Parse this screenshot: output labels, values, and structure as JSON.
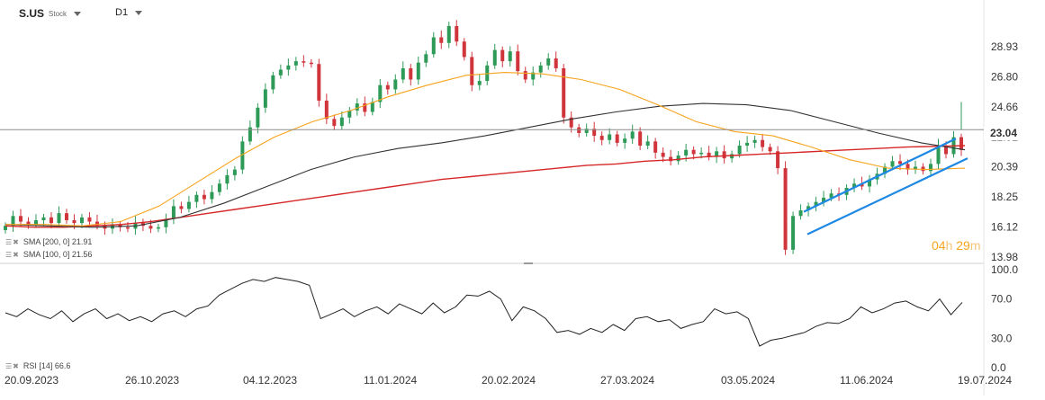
{
  "header": {
    "symbol": "S.US",
    "type": "Stock",
    "interval": "D1"
  },
  "legend": {
    "sma200": "SMA [200, 0] 21.91",
    "sma100": "SMA [100, 0] 21.56",
    "rsi": "RSI [14] 66.6"
  },
  "timer": {
    "hours": "04",
    "h_unit": "h",
    "minutes": "29",
    "m_unit": "m"
  },
  "current_price": "23.04",
  "colors": {
    "up": "#2e9a57",
    "down": "#d1353c",
    "sma_short": "#f7a31c",
    "sma100": "#333333",
    "sma200": "#d62728",
    "channel": "#1e88e5",
    "rsi": "#222222"
  },
  "chart_data": [
    {
      "type": "candlestick",
      "y_ticks": [
        "28.93",
        "26.80",
        "24.66",
        "22.52",
        "20.39",
        "18.25",
        "16.12",
        "13.98"
      ],
      "x_ticks": [
        "20.09.2023",
        "26.10.2023",
        "04.12.2023",
        "11.01.2024",
        "20.02.2024",
        "27.03.2024",
        "03.05.2024",
        "11.06.2024",
        "19.07.2024"
      ],
      "ylim": [
        13.98,
        31.1
      ],
      "current_price": 23.04,
      "close_series": [
        16.2,
        16.9,
        16.5,
        16.3,
        16.6,
        16.8,
        16.4,
        17.1,
        16.6,
        16.4,
        16.8,
        16.5,
        16.2,
        16.0,
        16.3,
        16.1,
        16.0,
        16.4,
        16.2,
        16.0,
        16.1,
        16.7,
        17.6,
        17.4,
        17.9,
        18.4,
        18.1,
        18.6,
        19.2,
        19.8,
        20.2,
        22.2,
        23.2,
        24.6,
        25.9,
        26.9,
        27.3,
        27.6,
        27.9,
        27.8,
        27.7,
        25.1,
        23.8,
        23.3,
        23.9,
        24.4,
        24.9,
        24.3,
        25.0,
        26.2,
        25.9,
        26.6,
        27.4,
        26.6,
        27.8,
        28.4,
        29.6,
        29.2,
        30.4,
        29.3,
        28.2,
        26.2,
        26.5,
        27.6,
        28.7,
        27.9,
        28.6,
        27.2,
        26.6,
        27.1,
        27.6,
        28.1,
        27.4,
        23.9,
        23.2,
        22.8,
        23.1,
        22.6,
        22.3,
        22.7,
        22.1,
        22.4,
        22.9,
        21.9,
        22.2,
        21.4,
        21.1,
        20.8,
        21.2,
        21.6,
        21.3,
        21.4,
        21.1,
        21.5,
        21.0,
        21.3,
        21.9,
        22.1,
        22.3,
        21.8,
        21.5,
        20.3,
        14.5,
        16.9,
        17.3,
        17.6,
        17.9,
        18.2,
        18.5,
        18.4,
        18.9,
        19.2,
        19.0,
        19.5,
        19.9,
        20.4,
        20.8,
        20.6,
        20.2,
        20.4,
        20.1,
        20.6,
        21.9,
        21.3,
        22.5,
        21.6
      ],
      "series": [
        {
          "name": "SMA [200, 0] 21.91",
          "values": [
            16.2,
            16.1,
            16.1,
            16.2,
            16.3,
            16.5,
            16.8,
            17.1,
            17.4,
            17.7,
            18.0,
            18.3,
            18.6,
            18.9,
            19.2,
            19.5,
            19.7,
            19.9,
            20.1,
            20.3,
            20.5,
            20.6,
            20.8,
            20.9,
            21.1,
            21.2,
            21.3,
            21.4,
            21.5,
            21.6,
            21.7,
            21.8,
            21.85,
            21.9
          ]
        },
        {
          "name": "SMA [100, 0] 21.56",
          "values": [
            16.3,
            16.2,
            16.1,
            16.2,
            16.8,
            17.8,
            19.0,
            20.2,
            21.1,
            21.7,
            22.1,
            22.6,
            23.2,
            23.8,
            24.3,
            24.7,
            24.9,
            24.8,
            24.4,
            23.6,
            22.8,
            22.1,
            21.6
          ]
        },
        {
          "name": "",
          "values": [
            16.3,
            16.3,
            16.2,
            16.5,
            17.6,
            19.3,
            21.0,
            22.5,
            23.6,
            24.4,
            25.4,
            26.2,
            26.9,
            27.1,
            27.0,
            26.6,
            25.9,
            24.8,
            23.6,
            22.9,
            22.6,
            21.8,
            20.9,
            20.3,
            20.2,
            20.3
          ]
        }
      ]
    },
    {
      "type": "line",
      "name": "RSI [14] 66.6",
      "y_ticks": [
        "100.0",
        "70.0",
        "30.0",
        "0.0"
      ],
      "ylim": [
        0,
        100
      ],
      "values": [
        56,
        52,
        60,
        54,
        50,
        58,
        47,
        55,
        60,
        50,
        55,
        48,
        52,
        47,
        55,
        58,
        52,
        60,
        63,
        74,
        80,
        86,
        90,
        88,
        92,
        90,
        88,
        84,
        50,
        55,
        60,
        52,
        58,
        62,
        55,
        65,
        60,
        55,
        66,
        56,
        62,
        74,
        73,
        78,
        70,
        48,
        62,
        58,
        50,
        36,
        38,
        34,
        40,
        36,
        44,
        38,
        50,
        52,
        47,
        49,
        40,
        44,
        47,
        60,
        55,
        57,
        50,
        22,
        28,
        30,
        33,
        36,
        42,
        46,
        45,
        50,
        62,
        56,
        60,
        66,
        68,
        62,
        58,
        70,
        54,
        66.6
      ]
    }
  ]
}
